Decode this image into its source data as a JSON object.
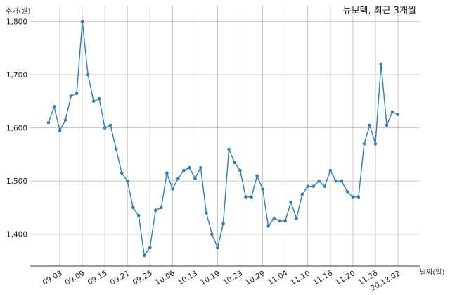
{
  "chart_data": {
    "type": "line",
    "title": "뉴보텍, 최근 3개월",
    "ylabel": "주가(원)",
    "xlabel": "날짜(일)",
    "ylim": [
      1340,
      1830
    ],
    "y_ticks": [
      1400,
      1500,
      1600,
      1700,
      1800
    ],
    "y_tick_labels": [
      "1,400",
      "1,500",
      "1,600",
      "1,700",
      "1,800"
    ],
    "x_tick_labels": [
      "09.03",
      "09.09",
      "09.15",
      "09.21",
      "09.25",
      "10.06",
      "10.13",
      "10.19",
      "10.23",
      "10.29",
      "11.04",
      "11.10",
      "11.16",
      "11.20",
      "11.26",
      "20.12.02"
    ],
    "x_tick_index": [
      2,
      6,
      10,
      14,
      18,
      22,
      26,
      30,
      34,
      38,
      42,
      46,
      50,
      54,
      58,
      62
    ],
    "grid": true,
    "color": "#2c7fb8",
    "series": [
      {
        "values": [
          1610,
          1640,
          1595,
          1615,
          1660,
          1665,
          1800,
          1700,
          1650,
          1655,
          1600,
          1605,
          1560,
          1515,
          1500,
          1450,
          1435,
          1360,
          1375,
          1445,
          1450,
          1515,
          1485,
          1505,
          1520,
          1525,
          1505,
          1525,
          1440,
          1400,
          1375,
          1420,
          1560,
          1535,
          1520,
          1470,
          1470,
          1510,
          1485,
          1415,
          1430,
          1425,
          1425,
          1460,
          1430,
          1475,
          1490,
          1490,
          1500,
          1490,
          1520,
          1500,
          1500,
          1480,
          1470,
          1470,
          1570,
          1605,
          1570,
          1720,
          1605,
          1630,
          1625
        ]
      }
    ]
  }
}
